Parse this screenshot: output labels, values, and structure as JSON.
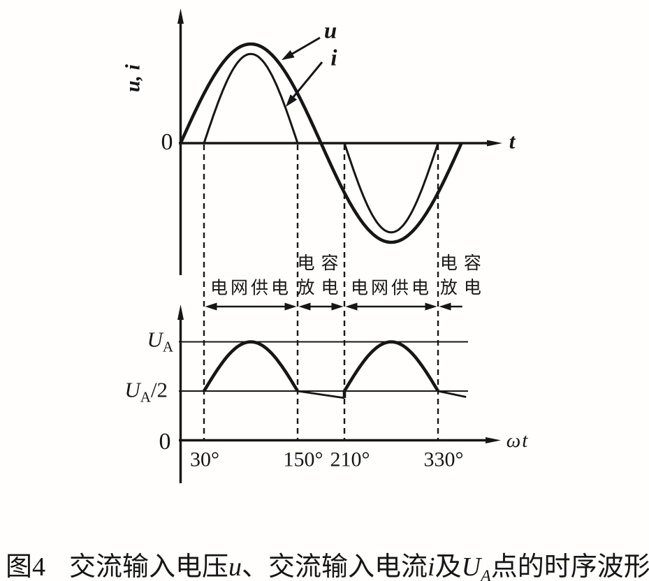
{
  "colors": {
    "ink": "#161616",
    "paper": "#fffefd"
  },
  "top_plot": {
    "y_axis_label": "u, i",
    "origin_label": "0",
    "x_axis_label": "t",
    "u_curve_label": "u",
    "i_curve_label": "i"
  },
  "intervals": [
    {
      "label_lines": [
        "电网供电"
      ],
      "from_deg": 30,
      "to_deg": 150,
      "arrow": "both"
    },
    {
      "label_lines": [
        "电容",
        "放电"
      ],
      "from_deg": 150,
      "to_deg": 210,
      "arrow": "both"
    },
    {
      "label_lines": [
        "电网供电"
      ],
      "from_deg": 210,
      "to_deg": 330,
      "arrow": "both"
    },
    {
      "label_lines": [
        "电容",
        "放电"
      ],
      "from_deg": 330,
      "to_deg": 366,
      "arrow": "left",
      "label_center_deg": 363
    }
  ],
  "bottom_plot": {
    "y_labels": [
      {
        "base": "U",
        "sub": "A",
        "suffix": ""
      },
      {
        "base": "U",
        "sub": "A",
        "suffix": "/2"
      }
    ],
    "origin_label": "0",
    "x_axis_label": "ωt",
    "x_tick_labels": [
      "30°",
      "150°",
      "210°",
      "330°"
    ]
  },
  "caption": {
    "prefix": "图4",
    "segments": [
      {
        "text": "交流输入电压",
        "style": "cjk"
      },
      {
        "text": "u",
        "style": "math"
      },
      {
        "text": "、交流输入电流",
        "style": "cjk"
      },
      {
        "text": "i",
        "style": "math"
      },
      {
        "text": "及",
        "style": "cjk"
      },
      {
        "text": "U",
        "style": "math"
      },
      {
        "text": "A",
        "style": "math-sub"
      },
      {
        "text": "点的时序波形",
        "style": "cjk"
      }
    ]
  },
  "chart_data": [
    {
      "id": "ac-input-voltage-current",
      "type": "line",
      "title": "交流输入电压u与交流输入电流i",
      "xlabel": "t",
      "ylabel": "u, i",
      "x_unit": "ωt degrees",
      "x_range_deg": [
        0,
        360
      ],
      "x_ticks_deg": [
        30,
        150,
        210,
        330
      ],
      "grid": false,
      "legend": "arrow annotations u and i",
      "series": [
        {
          "name": "u",
          "shape": "sine",
          "amplitude": 1.0,
          "from_deg": 0,
          "to_deg": 360,
          "x_deg": [
            0,
            30,
            60,
            90,
            120,
            150,
            180,
            210,
            240,
            270,
            300,
            330,
            360
          ],
          "y": [
            0,
            0.5,
            0.87,
            1.0,
            0.87,
            0.5,
            0,
            -0.5,
            -0.87,
            -1.0,
            -0.87,
            -0.5,
            0
          ]
        },
        {
          "name": "i",
          "shape": "half-sine pulses, zero elsewhere",
          "amplitude": 0.9,
          "pulses": [
            {
              "from_deg": 30,
              "to_deg": 150,
              "sign": 1
            },
            {
              "from_deg": 210,
              "to_deg": 330,
              "sign": -1
            }
          ],
          "x_deg": [
            0,
            30,
            60,
            90,
            120,
            150,
            180,
            210,
            240,
            270,
            300,
            330,
            360
          ],
          "y": [
            0,
            0,
            0.64,
            0.9,
            0.64,
            0,
            0,
            0,
            -0.64,
            -0.9,
            -0.64,
            0,
            0
          ]
        }
      ]
    },
    {
      "id": "ua-node-voltage",
      "type": "line",
      "title": "U_A点电压时序波形",
      "xlabel": "ωt",
      "ylabel": "U_A",
      "x_tick_labels": [
        "30°",
        "150°",
        "210°",
        "330°"
      ],
      "x_ticks_deg": [
        30,
        150,
        210,
        330
      ],
      "y_tick_labels": [
        "U_A",
        "U_A/2",
        "0"
      ],
      "reference_levels": [
        1.0,
        0.5
      ],
      "grid": false,
      "segments": [
        {
          "phase": "电网供电",
          "kind": "hump",
          "from_deg": 30,
          "to_deg": 150,
          "base": 0.5,
          "peak": 1.0
        },
        {
          "phase": "电容放电",
          "kind": "discharge",
          "from_deg": 150,
          "to_deg": 210,
          "v_start": 0.5,
          "v_end": 0.43
        },
        {
          "phase": "电网供电",
          "kind": "hump",
          "from_deg": 210,
          "to_deg": 330,
          "base": 0.5,
          "peak": 1.0
        },
        {
          "phase": "电容放电",
          "kind": "discharge",
          "from_deg": 330,
          "to_deg": 366,
          "v_start": 0.5,
          "v_end": 0.44
        }
      ]
    }
  ]
}
